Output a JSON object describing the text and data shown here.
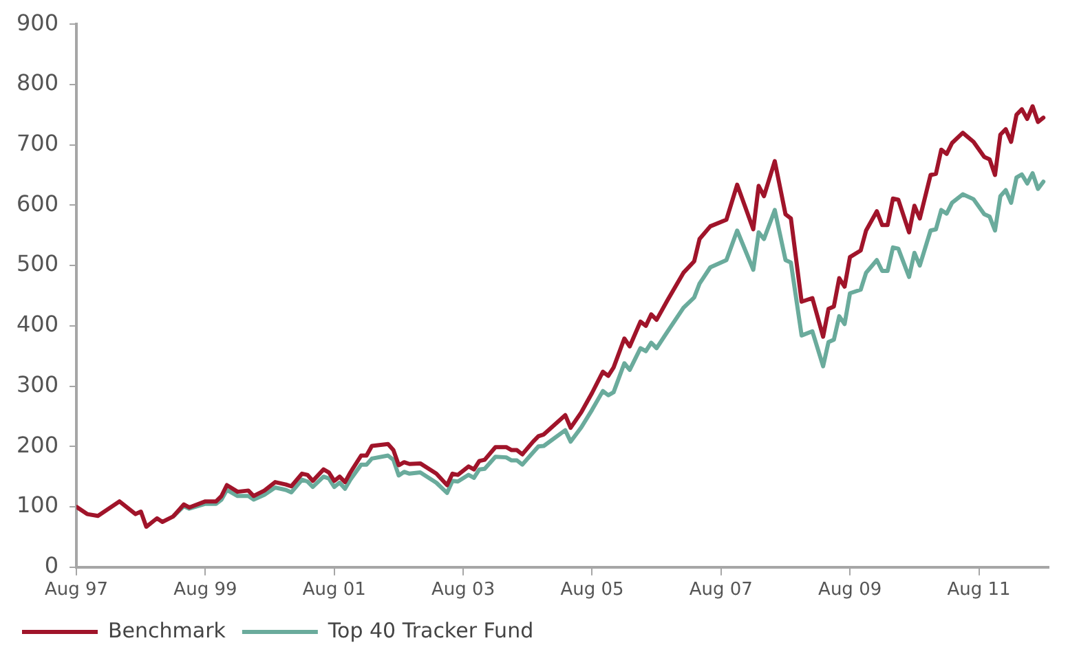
{
  "chart_data": {
    "type": "line",
    "x": [
      "1997-08",
      "1997-10",
      "1997-12",
      "1998-04",
      "1998-07",
      "1998-08",
      "1998-09",
      "1998-11",
      "1998-12",
      "1999-02",
      "1999-04",
      "1999-05",
      "1999-08",
      "1999-10",
      "1999-11",
      "1999-12",
      "2000-02",
      "2000-04",
      "2000-05",
      "2000-07",
      "2000-09",
      "2000-11",
      "2000-12",
      "2001-02",
      "2001-03",
      "2001-04",
      "2001-06",
      "2001-07",
      "2001-08",
      "2001-09",
      "2001-10",
      "2001-11",
      "2002-01",
      "2002-02",
      "2002-03",
      "2002-06",
      "2002-07",
      "2002-08",
      "2002-09",
      "2002-10",
      "2002-12",
      "2003-03",
      "2003-05",
      "2003-06",
      "2003-07",
      "2003-09",
      "2003-10",
      "2003-11",
      "2003-12",
      "2004-02",
      "2004-04",
      "2004-05",
      "2004-06",
      "2004-07",
      "2004-09",
      "2004-10",
      "2004-11",
      "2005-03",
      "2005-04",
      "2005-06",
      "2005-08",
      "2005-10",
      "2005-11",
      "2005-12",
      "2006-02",
      "2006-03",
      "2006-05",
      "2006-06",
      "2006-07",
      "2006-08",
      "2006-10",
      "2007-01",
      "2007-03",
      "2007-04",
      "2007-06",
      "2007-09",
      "2007-11",
      "2008-02",
      "2008-03",
      "2008-04",
      "2008-06",
      "2008-08",
      "2008-09",
      "2008-11",
      "2009-01",
      "2009-03",
      "2009-04",
      "2009-05",
      "2009-06",
      "2009-07",
      "2009-08",
      "2009-10",
      "2009-11",
      "2010-01",
      "2010-02",
      "2010-03",
      "2010-04",
      "2010-05",
      "2010-07",
      "2010-08",
      "2010-09",
      "2010-11",
      "2010-12",
      "2011-01",
      "2011-02",
      "2011-03",
      "2011-05",
      "2011-07",
      "2011-09",
      "2011-10",
      "2011-11",
      "2011-12",
      "2012-01",
      "2012-02",
      "2012-03",
      "2012-04",
      "2012-05",
      "2012-06",
      "2012-07",
      "2012-08"
    ],
    "series": [
      {
        "name": "Top 40 Tracker Fund",
        "color": "#6aab9c",
        "values": [
          null,
          null,
          null,
          null,
          null,
          null,
          null,
          null,
          null,
          84,
          101,
          97,
          105,
          105,
          112,
          128,
          118,
          118,
          112,
          120,
          132,
          128,
          124,
          145,
          142,
          133,
          150,
          147,
          133,
          140,
          130,
          145,
          170,
          170,
          180,
          185,
          178,
          152,
          158,
          155,
          157,
          140,
          123,
          143,
          142,
          153,
          148,
          162,
          163,
          183,
          182,
          177,
          177,
          170,
          190,
          200,
          201,
          227,
          208,
          232,
          261,
          292,
          285,
          290,
          338,
          327,
          363,
          358,
          372,
          363,
          390,
          430,
          447,
          470,
          497,
          509,
          558,
          493,
          555,
          544,
          592,
          509,
          505,
          384,
          391,
          333,
          373,
          377,
          416,
          403,
          454,
          460,
          488,
          509,
          491,
          491,
          530,
          528,
          481,
          521,
          500,
          558,
          560,
          592,
          586,
          604,
          618,
          610,
          585,
          581,
          558,
          615,
          625,
          604,
          646,
          651,
          636,
          653,
          627,
          639
        ]
      },
      {
        "name": "Benchmark",
        "color": "#a0142a",
        "values": [
          100,
          88,
          85,
          109,
          88,
          92,
          67,
          81,
          75,
          84,
          104,
          99,
          109,
          109,
          118,
          136,
          125,
          127,
          118,
          127,
          141,
          137,
          134,
          155,
          153,
          143,
          162,
          157,
          143,
          150,
          141,
          157,
          185,
          185,
          201,
          204,
          194,
          169,
          174,
          171,
          172,
          155,
          136,
          155,
          153,
          167,
          162,
          176,
          178,
          199,
          199,
          194,
          194,
          187,
          208,
          217,
          220,
          252,
          231,
          257,
          289,
          324,
          317,
          331,
          379,
          366,
          407,
          400,
          419,
          410,
          442,
          488,
          507,
          544,
          565,
          576,
          634,
          560,
          632,
          615,
          673,
          585,
          578,
          440,
          446,
          382,
          428,
          432,
          479,
          465,
          514,
          525,
          558,
          590,
          567,
          567,
          611,
          609,
          555,
          599,
          578,
          650,
          652,
          692,
          685,
          703,
          720,
          705,
          680,
          676,
          650,
          717,
          726,
          705,
          750,
          759,
          743,
          764,
          738,
          745
        ]
      }
    ],
    "xlim": [
      "1997-08",
      "2012-09"
    ],
    "xticks": [
      {
        "value": "1997-08",
        "label": "Aug 97"
      },
      {
        "value": "1999-08",
        "label": "Aug 99"
      },
      {
        "value": "2001-08",
        "label": "Aug 01"
      },
      {
        "value": "2003-08",
        "label": "Aug 03"
      },
      {
        "value": "2005-08",
        "label": "Aug 05"
      },
      {
        "value": "2007-08",
        "label": "Aug 07"
      },
      {
        "value": "2009-08",
        "label": "Aug 09"
      },
      {
        "value": "2011-08",
        "label": "Aug 11"
      }
    ],
    "ylim": [
      0,
      900
    ],
    "yticks": [
      0,
      100,
      200,
      300,
      400,
      500,
      600,
      700,
      800,
      900
    ],
    "grid": false,
    "legend": "bottom left",
    "marker": "none",
    "line_style": "solid"
  }
}
